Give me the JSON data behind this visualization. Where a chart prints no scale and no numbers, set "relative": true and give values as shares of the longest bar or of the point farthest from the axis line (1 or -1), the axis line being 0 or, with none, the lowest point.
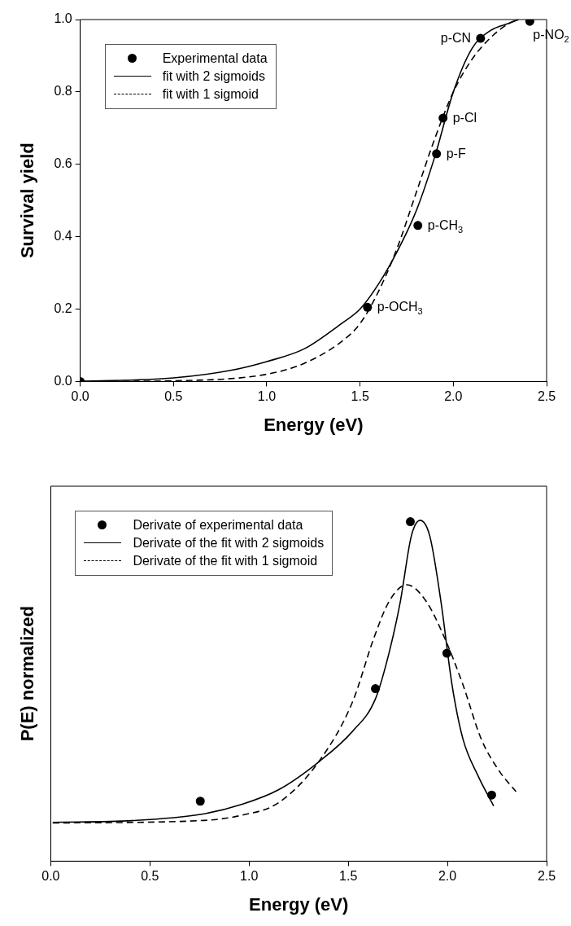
{
  "chart_data": [
    {
      "type": "line",
      "xlabel": "Energy (eV)",
      "ylabel": "Survival yield",
      "xlim": [
        0,
        2.5
      ],
      "xticks": [
        {
          "value": 0,
          "label": "0.0"
        },
        {
          "value": 0.5,
          "label": "0.5"
        },
        {
          "value": 1,
          "label": "1.0"
        },
        {
          "value": 1.5,
          "label": "1.5"
        },
        {
          "value": 2,
          "label": "2.0"
        },
        {
          "value": 2.5,
          "label": "2.5"
        }
      ],
      "ylim": [
        0,
        1
      ],
      "yticks": [
        {
          "value": 0,
          "label": "0.0"
        },
        {
          "value": 0.2,
          "label": "0.2"
        },
        {
          "value": 0.4,
          "label": "0.4"
        },
        {
          "value": 0.6,
          "label": "0.6"
        },
        {
          "value": 0.8,
          "label": "0.8"
        },
        {
          "value": 1,
          "label": "1.0"
        }
      ],
      "legend": "top left",
      "series": [
        {
          "name": "Experimental data",
          "type": "scatter",
          "marker": "circle",
          "color": "#000000",
          "x": [
            0,
            1.54,
            1.81,
            1.91,
            1.945,
            2.146,
            2.41
          ],
          "values": [
            0,
            0.205,
            0.431,
            0.629,
            0.728,
            0.948,
            0.995
          ]
        },
        {
          "name": "fit with 2 sigmoids",
          "marker": "none",
          "line_style": "solid",
          "color": "#000000",
          "x": [
            0,
            0.5,
            0.8,
            1.0,
            1.2,
            1.4,
            1.5,
            1.6,
            1.7,
            1.8,
            1.9,
            2.0,
            2.1,
            2.2,
            2.3,
            2.35
          ],
          "values": [
            0,
            0.01,
            0.03,
            0.055,
            0.09,
            0.16,
            0.2,
            0.27,
            0.36,
            0.47,
            0.62,
            0.8,
            0.92,
            0.97,
            0.99,
            1.0
          ]
        },
        {
          "name": "fit with 1 sigmoid",
          "marker": "none",
          "line_style": "dashed",
          "color": "#000000",
          "x": [
            0,
            0.5,
            1.0,
            1.2,
            1.4,
            1.5,
            1.6,
            1.7,
            1.8,
            1.9,
            2.0,
            2.1,
            2.2,
            2.3,
            2.35
          ],
          "values": [
            0,
            0.002,
            0.02,
            0.05,
            0.11,
            0.16,
            0.25,
            0.37,
            0.52,
            0.67,
            0.8,
            0.89,
            0.95,
            0.99,
            1.0
          ]
        }
      ],
      "annotations": [
        {
          "text": "p-OCH$_{3}$",
          "x": 1.54,
          "y": 0.205
        },
        {
          "text": "p-CH$_{3}$",
          "x": 1.81,
          "y": 0.431
        },
        {
          "text": "p-F",
          "x": 1.91,
          "y": 0.629
        },
        {
          "text": "p-Cl",
          "x": 1.945,
          "y": 0.728
        },
        {
          "text": "p-CN",
          "x": 2.146,
          "y": 0.948
        },
        {
          "text": "p-NO$_{2}$",
          "x": 2.41,
          "y": 0.995
        }
      ]
    },
    {
      "type": "line",
      "relative": true,
      "xlabel": "Energy (eV)",
      "ylabel": "P(E) normalized",
      "xlim": [
        0,
        2.5
      ],
      "xticks": [
        {
          "value": 0,
          "label": "0.0"
        },
        {
          "value": 0.5,
          "label": "0.5"
        },
        {
          "value": 1,
          "label": "1.0"
        },
        {
          "value": 1.5,
          "label": "1.5"
        },
        {
          "value": 2,
          "label": "2.0"
        },
        {
          "value": 2.5,
          "label": "2.5"
        }
      ],
      "tick_labels": "x",
      "legend": "top left",
      "series": [
        {
          "name": "Derivate of experimental data",
          "type": "scatter",
          "marker": "circle",
          "color": "#000000",
          "x": [
            0.754,
            1.637,
            1.813,
            1.997,
            2.223
          ],
          "values": [
            0.176,
            0.506,
            0.996,
            0.61,
            0.194
          ]
        },
        {
          "name": "Derivate of the fit with 2 sigmoids",
          "marker": "none",
          "line_style": "solid",
          "color": "#000000",
          "x": [
            0.01,
            0.41,
            0.754,
            0.965,
            1.15,
            1.355,
            1.52,
            1.637,
            1.707,
            1.763,
            1.818,
            1.862,
            1.911,
            1.967,
            2.023,
            2.078,
            2.153,
            2.233
          ],
          "values": [
            0.114,
            0.119,
            0.137,
            0.167,
            0.21,
            0.293,
            0.38,
            0.476,
            0.614,
            0.763,
            0.954,
            1.0,
            0.954,
            0.763,
            0.518,
            0.359,
            0.252,
            0.162
          ]
        },
        {
          "name": "Derivate of the fit with 1 sigmoid",
          "marker": "none",
          "line_style": "dashed",
          "color": "#000000",
          "x": [
            0.01,
            0.754,
            0.965,
            1.15,
            1.355,
            1.52,
            1.63,
            1.707,
            1.795,
            1.892,
            1.985,
            2.078,
            2.17,
            2.263,
            2.346
          ],
          "values": [
            0.112,
            0.119,
            0.135,
            0.172,
            0.295,
            0.465,
            0.656,
            0.763,
            0.811,
            0.763,
            0.656,
            0.518,
            0.359,
            0.263,
            0.204
          ]
        }
      ]
    }
  ]
}
